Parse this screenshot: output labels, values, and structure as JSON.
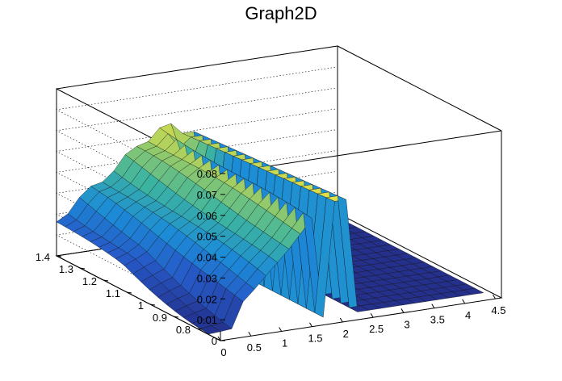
{
  "chart_data": {
    "type": "surface",
    "title": "Graph2D",
    "xlabel": "",
    "ylabel": "",
    "zlabel": "",
    "xlim": [
      0,
      4.6
    ],
    "ylim": [
      0.7,
      1.4
    ],
    "zlim": [
      0,
      0.08
    ],
    "x_ticks": [
      "0",
      "0.5",
      "1",
      "1.5",
      "2",
      "2.5",
      "3",
      "3.5",
      "4",
      "4.5"
    ],
    "y_ticks": [
      "0.8",
      "0.9",
      "1",
      "1.1",
      "1.2",
      "1.3",
      "1.4"
    ],
    "z_ticks": [
      "0",
      "0.01",
      "0.02",
      "0.03",
      "0.04",
      "0.05",
      "0.06",
      "0.07",
      "0.08"
    ],
    "grid": true,
    "colormap": "viridis-like (blue to yellow)",
    "grid_size": [
      24,
      18
    ],
    "surface_samples": [
      {
        "x": 0.0,
        "y": 1.4,
        "z": 0.017
      },
      {
        "x": 0.0,
        "y": 0.75,
        "z": 0.0
      },
      {
        "x": 1.0,
        "y": 1.4,
        "z": 0.045
      },
      {
        "x": 1.6,
        "y": 1.4,
        "z": 0.057
      },
      {
        "x": 1.8,
        "y": 1.0,
        "z": 0.05
      },
      {
        "x": 1.75,
        "y": 0.75,
        "z": 0.053
      },
      {
        "x": 2.1,
        "y": 1.05,
        "z": 0.055
      },
      {
        "x": 2.4,
        "y": 1.0,
        "z": 0.0
      },
      {
        "x": 4.5,
        "y": 0.75,
        "z": 0.0
      }
    ]
  }
}
